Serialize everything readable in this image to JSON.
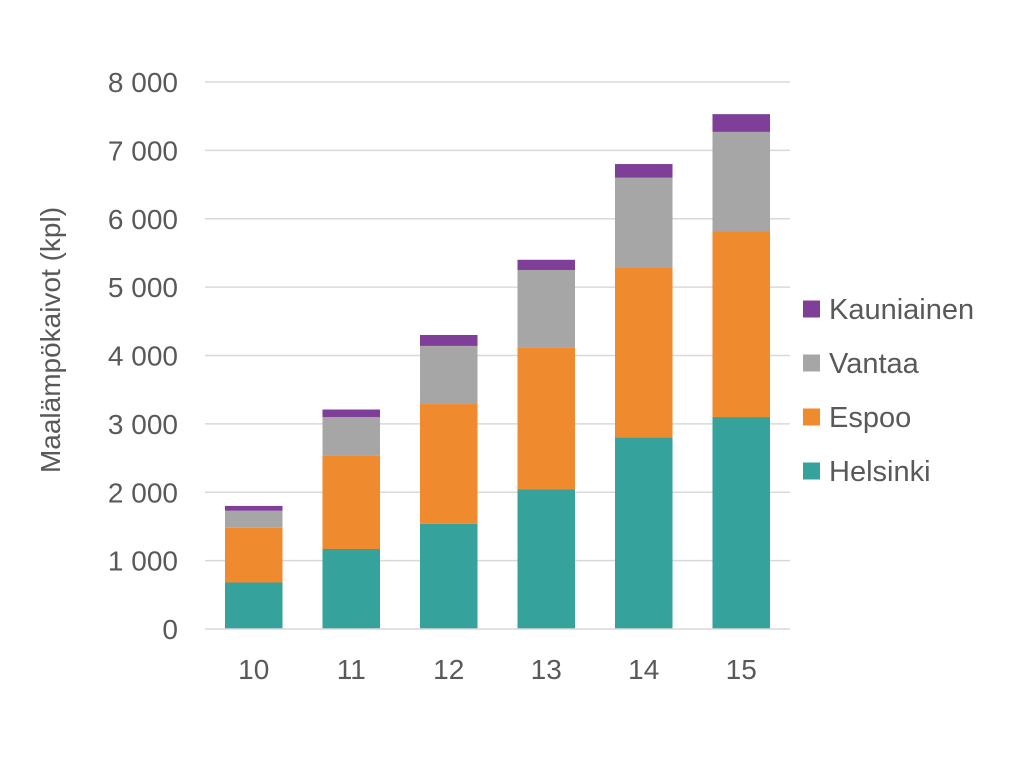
{
  "chart_data": {
    "type": "bar",
    "stacked": true,
    "title": "",
    "xlabel": "",
    "ylabel": "Maalämpökaivot (kpl)",
    "ylim": [
      0,
      8000
    ],
    "yticks": [
      0,
      1000,
      2000,
      3000,
      4000,
      5000,
      6000,
      7000,
      8000
    ],
    "ytick_labels": [
      "0",
      "1 000",
      "2 000",
      "3 000",
      "4 000",
      "5 000",
      "6 000",
      "7 000",
      "8 000"
    ],
    "categories": [
      "10",
      "11",
      "12",
      "13",
      "14",
      "15"
    ],
    "grid": "horizontal",
    "legend_position": "right",
    "series": [
      {
        "name": "Helsinki",
        "color": "#35a29b",
        "values": [
          680,
          1170,
          1540,
          2040,
          2800,
          3100
        ]
      },
      {
        "name": "Espoo",
        "color": "#f08a2f",
        "values": [
          800,
          1370,
          1750,
          2080,
          2480,
          2720
        ]
      },
      {
        "name": "Vantaa",
        "color": "#a6a6a6",
        "values": [
          250,
          560,
          850,
          1130,
          1320,
          1450
        ]
      },
      {
        "name": "Kauniainen",
        "color": "#7f3f98",
        "values": [
          70,
          110,
          160,
          150,
          200,
          260
        ]
      }
    ]
  }
}
